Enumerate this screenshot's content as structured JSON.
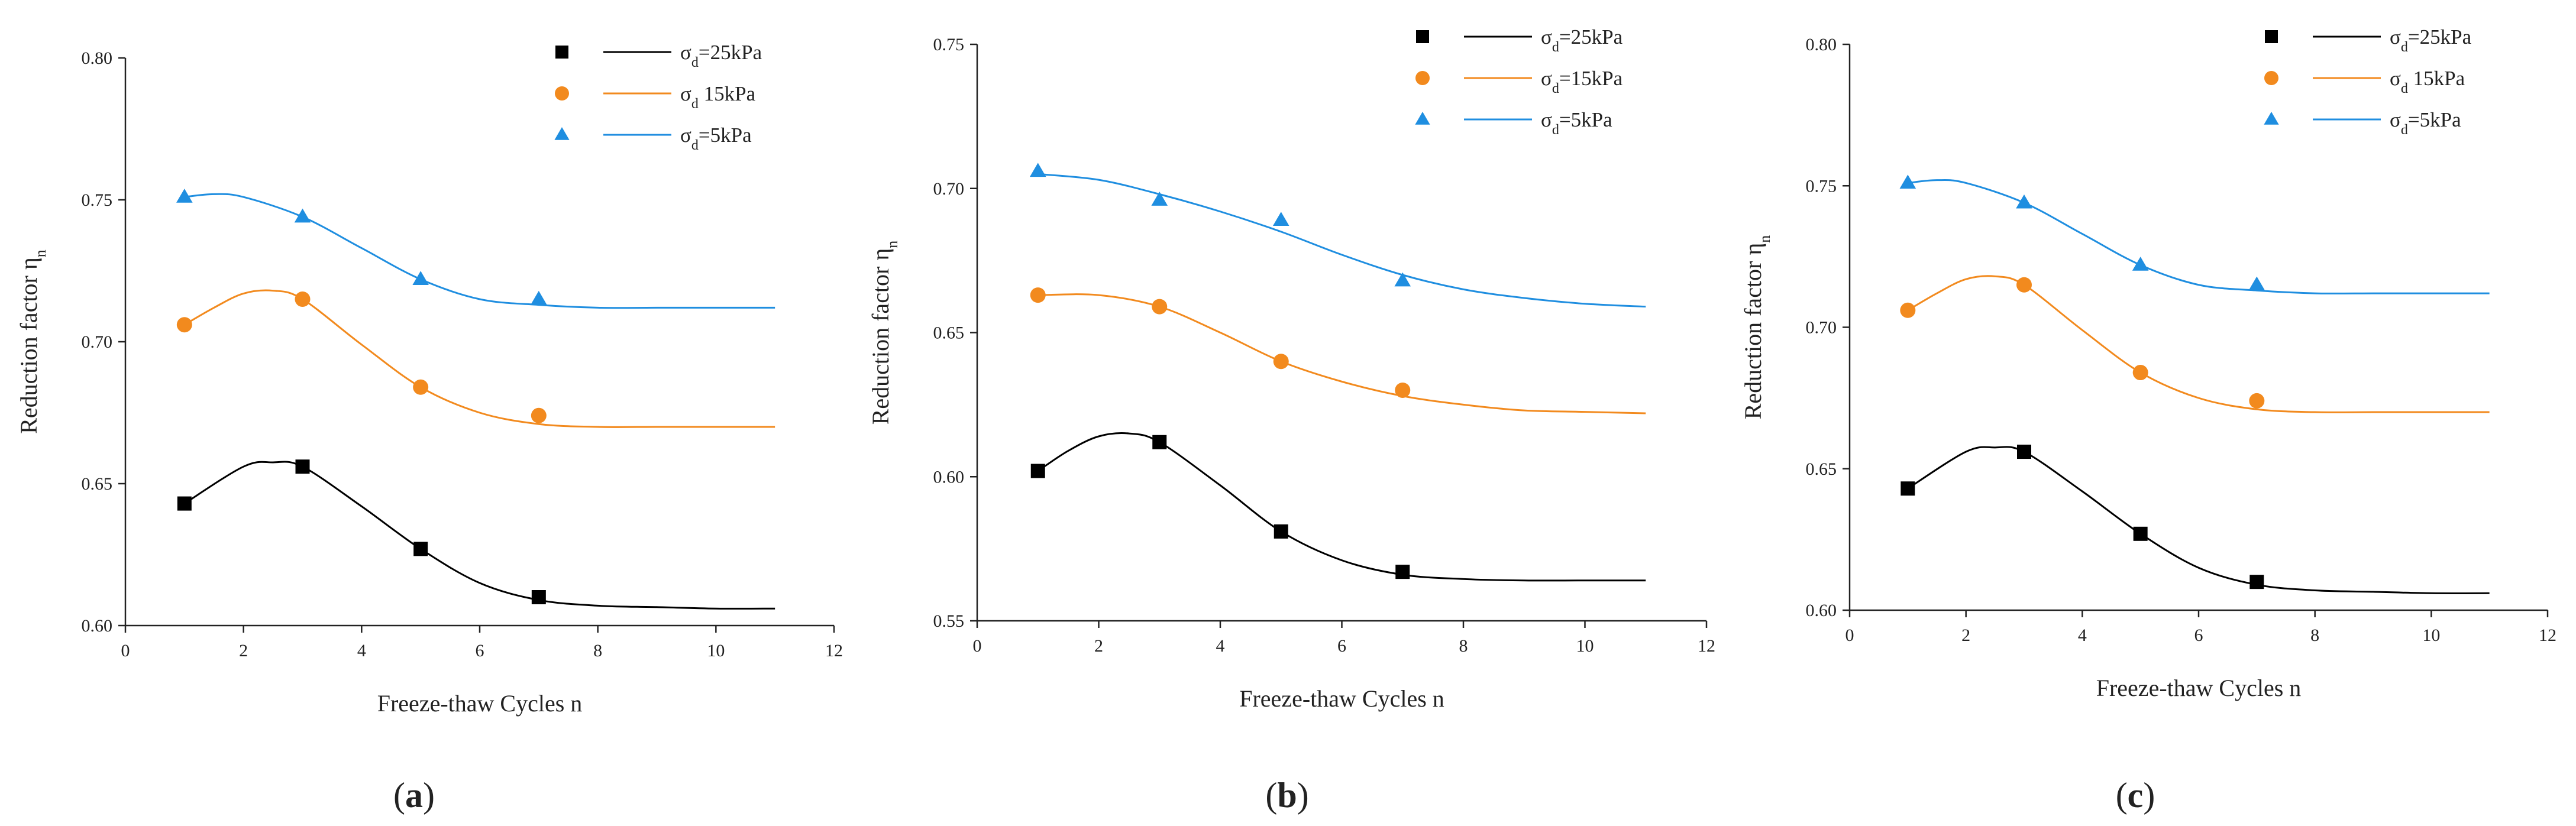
{
  "chart_data": [
    {
      "type": "line",
      "panel_label": "a",
      "xlabel": "Freeze-thaw Cycles n",
      "ylabel": "Reduction factor η",
      "ylabel_sub": "n",
      "xlim": [
        0,
        12
      ],
      "ylim": [
        0.6,
        0.8
      ],
      "xticks": [
        0,
        2,
        4,
        6,
        8,
        10,
        12
      ],
      "yticks": [
        "0.60",
        "0.65",
        "0.70",
        "0.75",
        "0.80"
      ],
      "legend_position": "top-right",
      "series": [
        {
          "legend_prefix": "σ",
          "legend_sub": "d",
          "legend_suffix": "=25kPa",
          "color": "#000000",
          "marker": "square",
          "x": [
            1,
            3,
            5,
            7
          ],
          "values": [
            0.643,
            0.656,
            0.627,
            0.61
          ],
          "fit_x": [
            1,
            2,
            2.5,
            3,
            4,
            5,
            6,
            7,
            8,
            9,
            10,
            11
          ],
          "fit_y": [
            0.643,
            0.656,
            0.6575,
            0.656,
            0.642,
            0.627,
            0.615,
            0.609,
            0.607,
            0.6065,
            0.606,
            0.606
          ]
        },
        {
          "legend_prefix": "σ",
          "legend_sub": "d",
          "legend_suffix": " 15kPa",
          "color": "#f28a1e",
          "marker": "circle",
          "x": [
            1,
            3,
            5,
            7
          ],
          "values": [
            0.706,
            0.715,
            0.684,
            0.674
          ],
          "fit_x": [
            1,
            1.5,
            2,
            2.5,
            3,
            4,
            5,
            6,
            7,
            8,
            9,
            10,
            11
          ],
          "fit_y": [
            0.706,
            0.712,
            0.717,
            0.718,
            0.715,
            0.699,
            0.684,
            0.675,
            0.671,
            0.67,
            0.67,
            0.67,
            0.67
          ]
        },
        {
          "legend_prefix": "σ",
          "legend_sub": "d",
          "legend_suffix": "=5kPa",
          "color": "#1f8ee0",
          "marker": "triangle",
          "x": [
            1,
            3,
            5,
            7
          ],
          "values": [
            0.751,
            0.744,
            0.722,
            0.715
          ],
          "fit_x": [
            1,
            1.5,
            2,
            3,
            4,
            5,
            6,
            7,
            8,
            9,
            10,
            11
          ],
          "fit_y": [
            0.751,
            0.752,
            0.751,
            0.744,
            0.733,
            0.722,
            0.715,
            0.713,
            0.712,
            0.712,
            0.712,
            0.712
          ]
        }
      ]
    },
    {
      "type": "line",
      "panel_label": "b",
      "xlabel": "Freeze-thaw Cycles n",
      "ylabel": "Reduction factor η",
      "ylabel_sub": "n",
      "xlim": [
        0,
        12
      ],
      "ylim": [
        0.55,
        0.75
      ],
      "xticks": [
        0,
        2,
        4,
        6,
        8,
        10,
        12
      ],
      "yticks": [
        "0.55",
        "0.60",
        "0.65",
        "0.70",
        "0.75"
      ],
      "legend_position": "top-right",
      "series": [
        {
          "legend_prefix": "σ",
          "legend_sub": "d",
          "legend_suffix": "=25kPa",
          "color": "#000000",
          "marker": "square",
          "x": [
            1,
            3,
            5,
            7
          ],
          "values": [
            0.602,
            0.612,
            0.581,
            0.567
          ],
          "fit_x": [
            1,
            1.5,
            2,
            2.5,
            3,
            4,
            5,
            6,
            7,
            8,
            9,
            10,
            11
          ],
          "fit_y": [
            0.602,
            0.609,
            0.614,
            0.615,
            0.612,
            0.597,
            0.581,
            0.571,
            0.566,
            0.5645,
            0.564,
            0.564,
            0.564
          ]
        },
        {
          "legend_prefix": "σ",
          "legend_sub": "d",
          "legend_suffix": "=15kPa",
          "color": "#f28a1e",
          "marker": "circle",
          "x": [
            1,
            3,
            5,
            7
          ],
          "values": [
            0.663,
            0.659,
            0.64,
            0.63
          ],
          "fit_x": [
            1,
            2,
            3,
            4,
            5,
            6,
            7,
            8,
            9,
            10,
            11
          ],
          "fit_y": [
            0.663,
            0.663,
            0.659,
            0.65,
            0.64,
            0.633,
            0.628,
            0.625,
            0.623,
            0.6225,
            0.622
          ]
        },
        {
          "legend_prefix": "σ",
          "legend_sub": "d",
          "legend_suffix": "=5kPa",
          "color": "#1f8ee0",
          "marker": "triangle",
          "x": [
            1,
            3,
            5,
            7
          ],
          "values": [
            0.706,
            0.696,
            0.689,
            0.668
          ],
          "fit_x": [
            1,
            2,
            3,
            4,
            5,
            6,
            7,
            8,
            9,
            10,
            11
          ],
          "fit_y": [
            0.705,
            0.703,
            0.698,
            0.692,
            0.685,
            0.677,
            0.67,
            0.665,
            0.662,
            0.66,
            0.659
          ]
        }
      ]
    },
    {
      "type": "line",
      "panel_label": "c",
      "xlabel": "Freeze-thaw Cycles n",
      "ylabel": "Reduction factor η",
      "ylabel_sub": "n",
      "xlim": [
        0,
        12
      ],
      "ylim": [
        0.6,
        0.8
      ],
      "xticks": [
        0,
        2,
        4,
        6,
        8,
        10,
        12
      ],
      "yticks": [
        "0.60",
        "0.65",
        "0.70",
        "0.75",
        "0.80"
      ],
      "legend_position": "top-right",
      "series": [
        {
          "legend_prefix": "σ",
          "legend_sub": "d",
          "legend_suffix": "=25kPa",
          "color": "#000000",
          "marker": "square",
          "x": [
            1,
            3,
            5,
            7
          ],
          "values": [
            0.643,
            0.656,
            0.627,
            0.61
          ],
          "fit_x": [
            1,
            2,
            2.5,
            3,
            4,
            5,
            6,
            7,
            8,
            9,
            10,
            11
          ],
          "fit_y": [
            0.643,
            0.656,
            0.6575,
            0.656,
            0.642,
            0.627,
            0.615,
            0.609,
            0.607,
            0.6065,
            0.606,
            0.606
          ]
        },
        {
          "legend_prefix": "σ",
          "legend_sub": "d",
          "legend_suffix": " 15kPa",
          "color": "#f28a1e",
          "marker": "circle",
          "x": [
            1,
            3,
            5,
            7
          ],
          "values": [
            0.706,
            0.715,
            0.684,
            0.674
          ],
          "fit_x": [
            1,
            1.5,
            2,
            2.5,
            3,
            4,
            5,
            6,
            7,
            8,
            9,
            10,
            11
          ],
          "fit_y": [
            0.706,
            0.712,
            0.717,
            0.718,
            0.715,
            0.699,
            0.684,
            0.675,
            0.671,
            0.67,
            0.67,
            0.67,
            0.67
          ]
        },
        {
          "legend_prefix": "σ",
          "legend_sub": "d",
          "legend_suffix": "=5kPa",
          "color": "#1f8ee0",
          "marker": "triangle",
          "x": [
            1,
            3,
            5,
            7
          ],
          "values": [
            0.751,
            0.744,
            0.722,
            0.715
          ],
          "fit_x": [
            1,
            1.5,
            2,
            3,
            4,
            5,
            6,
            7,
            8,
            9,
            10,
            11
          ],
          "fit_y": [
            0.751,
            0.752,
            0.751,
            0.744,
            0.733,
            0.722,
            0.715,
            0.713,
            0.712,
            0.712,
            0.712,
            0.712
          ]
        }
      ]
    }
  ]
}
